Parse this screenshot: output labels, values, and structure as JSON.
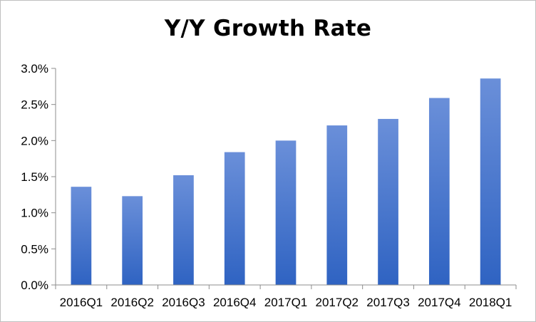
{
  "chart_data": {
    "type": "bar",
    "title": "Y/Y Growth Rate",
    "xlabel": "",
    "ylabel": "",
    "categories": [
      "2016Q1",
      "2016Q2",
      "2016Q3",
      "2016Q4",
      "2017Q1",
      "2017Q2",
      "2017Q3",
      "2017Q4",
      "2018Q1"
    ],
    "values": [
      1.36,
      1.23,
      1.52,
      1.84,
      2.0,
      2.21,
      2.3,
      2.59,
      2.86
    ],
    "ylim": [
      0,
      3.0
    ],
    "yticks": [
      0,
      0.5,
      1.0,
      1.5,
      2.0,
      2.5,
      3.0
    ],
    "ytick_labels": [
      "0.0%",
      "0.5%",
      "1.0%",
      "1.5%",
      "2.0%",
      "2.5%",
      "3.0%"
    ],
    "grid": false,
    "legend": "none",
    "colors": {
      "bar_top": "#6a8fd9",
      "bar_bottom": "#2f63c2",
      "axis": "#8c8c8c"
    }
  }
}
